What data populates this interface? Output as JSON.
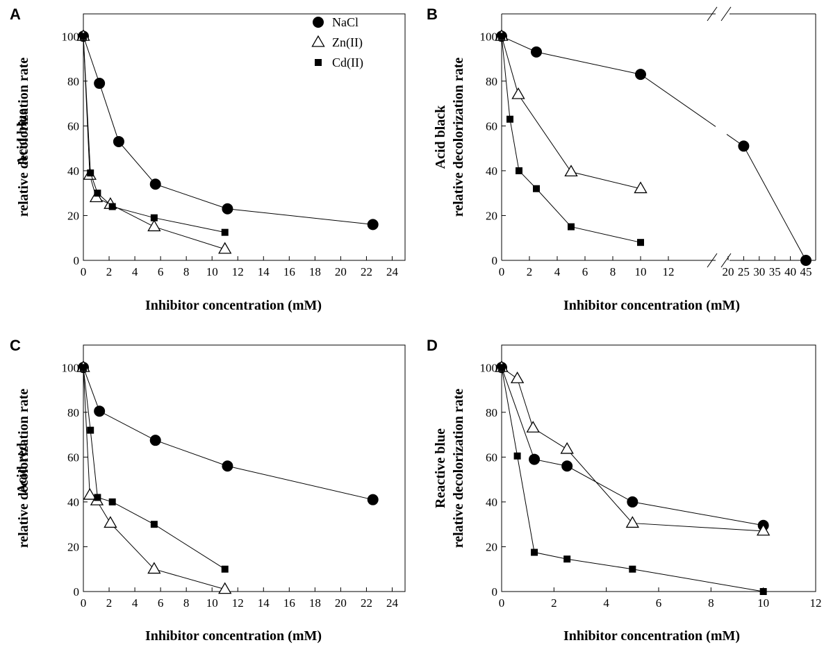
{
  "chart_data": [
    {
      "panel": "A",
      "type": "line",
      "ylabel_line1": "Acid blue",
      "ylabel_line2": "relative decolorization rate",
      "xlabel": "Inhibitor concentration (mM)",
      "xlim": [
        0,
        25
      ],
      "ylim": [
        0,
        110
      ],
      "xticks": [
        0,
        2,
        4,
        6,
        8,
        10,
        12,
        14,
        16,
        18,
        20,
        22,
        24
      ],
      "yticks": [
        0,
        20,
        40,
        60,
        80,
        100
      ],
      "legend": {
        "position": "top-right"
      },
      "series": [
        {
          "name": "NaCl",
          "marker": "filled-circle",
          "x": [
            0,
            1.25,
            2.75,
            5.6,
            11.2,
            22.5
          ],
          "y": [
            100,
            79,
            53,
            34,
            23,
            16
          ]
        },
        {
          "name": "Zn(II)",
          "marker": "open-triangle",
          "x": [
            0,
            0.5,
            1,
            2.1,
            5.5,
            11
          ],
          "y": [
            100,
            38,
            28,
            25,
            15,
            5
          ]
        },
        {
          "name": "Cd(II)",
          "marker": "filled-square",
          "x": [
            0,
            0.55,
            1.1,
            2.25,
            5.5,
            11
          ],
          "y": [
            100,
            39,
            30,
            24,
            19,
            12.5
          ]
        }
      ]
    },
    {
      "panel": "B",
      "type": "line",
      "ylabel_line1": "Acid black",
      "ylabel_line2": "relative decolorization rate",
      "xlabel": "Inhibitor concentration (mM)",
      "ylim": [
        0,
        110
      ],
      "x_axis_break": {
        "first_segment": [
          0,
          12
        ],
        "second_segment": [
          20,
          45
        ]
      },
      "xticks": [
        0,
        2,
        4,
        6,
        8,
        10,
        12,
        20,
        25,
        30,
        35,
        40,
        45
      ],
      "yticks": [
        0,
        20,
        40,
        60,
        80,
        100
      ],
      "series": [
        {
          "name": "NaCl",
          "marker": "filled-circle",
          "x": [
            0,
            2.5,
            10,
            25,
            45
          ],
          "y": [
            100,
            93,
            83,
            51,
            0
          ]
        },
        {
          "name": "Zn(II)",
          "marker": "open-triangle",
          "x": [
            0,
            1.2,
            5,
            10
          ],
          "y": [
            100,
            74,
            39.5,
            32
          ]
        },
        {
          "name": "Cd(II)",
          "marker": "filled-square",
          "x": [
            0,
            0.6,
            1.25,
            2.5,
            5,
            10
          ],
          "y": [
            100,
            63,
            40,
            32,
            15,
            8
          ]
        }
      ]
    },
    {
      "panel": "C",
      "type": "line",
      "ylabel_line1": "Acid red",
      "ylabel_line2": "relative decolorization rate",
      "xlabel": "Inhibitor concentration (mM)",
      "xlim": [
        0,
        25
      ],
      "ylim": [
        0,
        110
      ],
      "xticks": [
        0,
        2,
        4,
        6,
        8,
        10,
        12,
        14,
        16,
        18,
        20,
        22,
        24
      ],
      "yticks": [
        0,
        20,
        40,
        60,
        80,
        100
      ],
      "series": [
        {
          "name": "NaCl",
          "marker": "filled-circle",
          "x": [
            0,
            1.25,
            5.6,
            11.2,
            22.5
          ],
          "y": [
            100,
            80.5,
            67.5,
            56,
            41
          ]
        },
        {
          "name": "Zn(II)",
          "marker": "open-triangle",
          "x": [
            0,
            0.5,
            1.05,
            2.1,
            5.5,
            11
          ],
          "y": [
            100,
            43,
            40.5,
            30.5,
            10,
            1
          ]
        },
        {
          "name": "Cd(II)",
          "marker": "filled-square",
          "x": [
            0,
            0.55,
            1.1,
            2.25,
            5.5,
            11
          ],
          "y": [
            100,
            72,
            42,
            40,
            30,
            10
          ]
        }
      ]
    },
    {
      "panel": "D",
      "type": "line",
      "ylabel_line1": "Reactive blue",
      "ylabel_line2": "relative decolorization rate",
      "xlabel": "Inhibitor concentration (mM)",
      "xlim": [
        0,
        12
      ],
      "ylim": [
        0,
        110
      ],
      "xticks": [
        0,
        2,
        4,
        6,
        8,
        10,
        12
      ],
      "yticks": [
        0,
        20,
        40,
        60,
        80,
        100
      ],
      "series": [
        {
          "name": "NaCl",
          "marker": "filled-circle",
          "x": [
            0,
            1.25,
            2.5,
            5,
            10
          ],
          "y": [
            100,
            59,
            56,
            40,
            29.5
          ]
        },
        {
          "name": "Zn(II)",
          "marker": "open-triangle",
          "x": [
            0,
            0.6,
            1.2,
            2.5,
            5,
            10
          ],
          "y": [
            100,
            95,
            73,
            63.5,
            30.5,
            27
          ]
        },
        {
          "name": "Cd(II)",
          "marker": "filled-square",
          "x": [
            0,
            0.6,
            1.25,
            2.5,
            5,
            10
          ],
          "y": [
            100,
            60.5,
            17.5,
            14.5,
            10,
            0
          ]
        }
      ]
    }
  ]
}
